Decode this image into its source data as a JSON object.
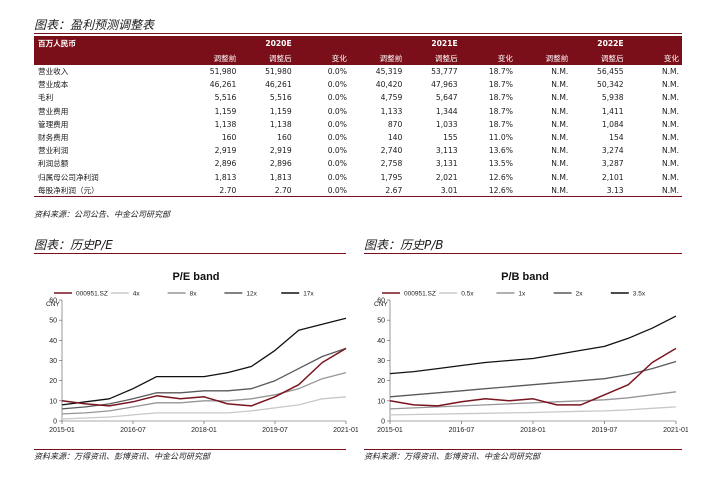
{
  "table_section": {
    "title": "图表：盈利预测调整表",
    "source": "资料来源：公司公告、中金公司研究部",
    "unit_label": "百万人民币",
    "years": [
      "2020E",
      "2021E",
      "2022E"
    ],
    "subheaders": [
      "调整前",
      "调整后",
      "变化",
      "调整前",
      "调整后",
      "变化",
      "调整前",
      "调整后",
      "变化"
    ],
    "rows": [
      {
        "label": "营业收入",
        "cells": [
          "51,980",
          "51,980",
          "0.0%",
          "45,319",
          "53,777",
          "18.7%",
          "N.M.",
          "56,455",
          "N.M."
        ]
      },
      {
        "label": "营业成本",
        "cells": [
          "46,261",
          "46,261",
          "0.0%",
          "40,420",
          "47,963",
          "18.7%",
          "N.M.",
          "50,342",
          "N.M."
        ]
      },
      {
        "label": "毛利",
        "cells": [
          "5,516",
          "5,516",
          "0.0%",
          "4,759",
          "5,647",
          "18.7%",
          "N.M.",
          "5,938",
          "N.M."
        ]
      },
      {
        "label": "营业费用",
        "cells": [
          "1,159",
          "1,159",
          "0.0%",
          "1,133",
          "1,344",
          "18.7%",
          "N.M.",
          "1,411",
          "N.M."
        ]
      },
      {
        "label": "管理费用",
        "cells": [
          "1,138",
          "1,138",
          "0.0%",
          "870",
          "1,033",
          "18.7%",
          "N.M.",
          "1,084",
          "N.M."
        ]
      },
      {
        "label": "财务费用",
        "cells": [
          "160",
          "160",
          "0.0%",
          "140",
          "155",
          "11.0%",
          "N.M.",
          "154",
          "N.M."
        ]
      },
      {
        "label": "营业利润",
        "cells": [
          "2,919",
          "2,919",
          "0.0%",
          "2,740",
          "3,113",
          "13.6%",
          "N.M.",
          "3,274",
          "N.M."
        ]
      },
      {
        "label": "利润总额",
        "cells": [
          "2,896",
          "2,896",
          "0.0%",
          "2,758",
          "3,131",
          "13.5%",
          "N.M.",
          "3,287",
          "N.M."
        ]
      },
      {
        "label": "归属母公司净利润",
        "cells": [
          "1,813",
          "1,813",
          "0.0%",
          "1,795",
          "2,021",
          "12.6%",
          "N.M.",
          "2,101",
          "N.M."
        ]
      },
      {
        "label": "每股净利润（元）",
        "cells": [
          "2.70",
          "2.70",
          "0.0%",
          "2.67",
          "3.01",
          "12.6%",
          "N.M.",
          "3.13",
          "N.M."
        ]
      }
    ]
  },
  "pe_section": {
    "title": "图表：历史P/E",
    "source": "资料来源：万得资讯、彭博资讯、中金公司研究部"
  },
  "pb_section": {
    "title": "图表：历史P/B",
    "source": "资料来源：万得资讯、彭博资讯、中金公司研究部"
  },
  "colors": {
    "brand": "#7a0f1a",
    "stock_line": "#7a1420",
    "band_1": "#c8c8c8",
    "band_2": "#969696",
    "band_3": "#5a5a5a",
    "band_4": "#111111"
  },
  "chart_data": [
    {
      "type": "line",
      "title": "P/E band",
      "ylabel": "CNY",
      "ylim": [
        0,
        60
      ],
      "yticks": [
        0,
        10,
        20,
        30,
        40,
        50,
        60
      ],
      "x_tick_labels": [
        "2015-01",
        "2016-07",
        "2018-01",
        "2019-07",
        "2021-01"
      ],
      "legend_position": "top",
      "grid": false,
      "x": [
        "2015-01",
        "2015-07",
        "2016-01",
        "2016-07",
        "2017-01",
        "2017-07",
        "2018-01",
        "2018-07",
        "2019-01",
        "2019-07",
        "2020-01",
        "2020-07",
        "2021-01"
      ],
      "series": [
        {
          "name": "000951.SZ",
          "color": "#7a1420",
          "values": [
            10,
            8.5,
            7.5,
            9.5,
            12.5,
            11,
            12,
            8.5,
            7.5,
            12,
            18,
            29,
            36
          ]
        },
        {
          "name": "4x",
          "color": "#c8c8c8",
          "values": [
            1,
            1.5,
            2,
            3,
            4,
            4,
            4,
            4,
            5,
            6.5,
            8,
            11,
            12
          ]
        },
        {
          "name": "8x",
          "color": "#969696",
          "values": [
            3.5,
            4,
            5,
            7,
            9,
            9,
            10,
            10,
            11,
            13,
            16,
            21,
            24
          ]
        },
        {
          "name": "12x",
          "color": "#5a5a5a",
          "values": [
            6,
            7,
            8.5,
            11,
            14,
            14,
            15,
            15,
            16,
            20,
            26,
            32,
            36
          ]
        },
        {
          "name": "17x",
          "color": "#111111",
          "values": [
            8,
            9.5,
            11,
            16,
            22,
            22,
            22,
            24,
            27,
            35,
            45,
            48,
            51
          ]
        }
      ]
    },
    {
      "type": "line",
      "title": "P/B band",
      "ylabel": "CNY",
      "ylim": [
        0,
        60
      ],
      "yticks": [
        0,
        10,
        20,
        30,
        40,
        50,
        60
      ],
      "x_tick_labels": [
        "2015-01",
        "2016-07",
        "2018-01",
        "2019-07",
        "2021-01"
      ],
      "legend_position": "top",
      "grid": false,
      "x": [
        "2015-01",
        "2015-07",
        "2016-01",
        "2016-07",
        "2017-01",
        "2017-07",
        "2018-01",
        "2018-07",
        "2019-01",
        "2019-07",
        "2020-01",
        "2020-07",
        "2021-01"
      ],
      "series": [
        {
          "name": "000951.SZ",
          "color": "#7a1420",
          "values": [
            10,
            8,
            7.5,
            9.5,
            11,
            10,
            11,
            8,
            8,
            13,
            18,
            29,
            36
          ]
        },
        {
          "name": "0.5x",
          "color": "#c8c8c8",
          "values": [
            3,
            3.2,
            3.4,
            3.6,
            3.8,
            4,
            4.2,
            4.5,
            4.8,
            5,
            5.5,
            6.3,
            7
          ]
        },
        {
          "name": "1x",
          "color": "#969696",
          "values": [
            6,
            6.5,
            7,
            7.5,
            8,
            8.5,
            9,
            9.5,
            10,
            10.5,
            11.5,
            13,
            14.5
          ]
        },
        {
          "name": "2x",
          "color": "#5a5a5a",
          "values": [
            12,
            13,
            14,
            15,
            16,
            17,
            18,
            19,
            20,
            21,
            23,
            26,
            29.5
          ]
        },
        {
          "name": "3.5x",
          "color": "#111111",
          "values": [
            23.5,
            24.5,
            26,
            27.5,
            29,
            30,
            31,
            33,
            35,
            37,
            41,
            46,
            52
          ]
        }
      ]
    }
  ]
}
